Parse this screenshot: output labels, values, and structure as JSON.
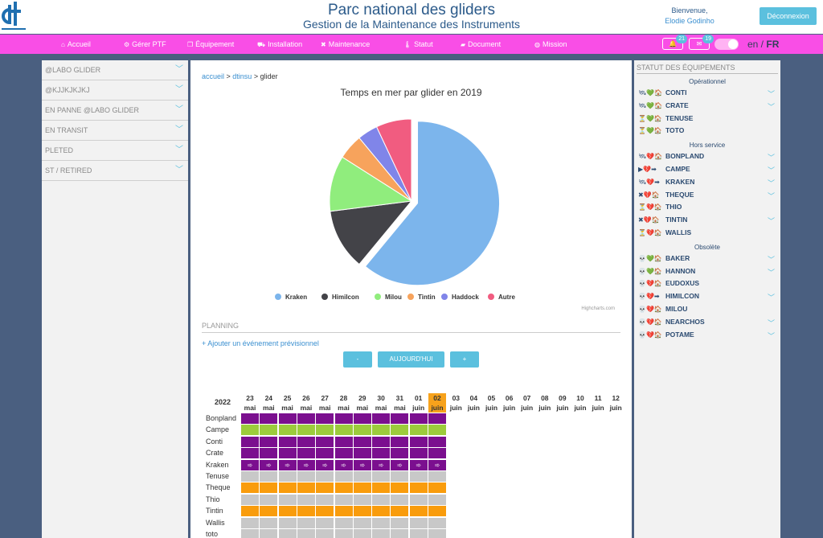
{
  "header": {
    "title": "Parc national des gliders",
    "subtitle": "Gestion de la Maintenance des Instruments",
    "welcome": "Bienvenue,",
    "user": "Elodie Godinho",
    "logout": "Déconnexion"
  },
  "nav": {
    "items": [
      {
        "label": "Accueil",
        "icon": "home-icon"
      },
      {
        "label": "Gérer PTF",
        "icon": "gears-icon"
      },
      {
        "label": "Équipement",
        "icon": "box-icon"
      },
      {
        "label": "Installation",
        "icon": "truck-icon"
      },
      {
        "label": "Maintenance",
        "icon": "wrench-icon"
      },
      {
        "label": "Statut",
        "icon": "thermometer-icon"
      },
      {
        "label": "Document",
        "icon": "folder-icon"
      },
      {
        "label": "Mission",
        "icon": "globe-icon"
      }
    ],
    "notifications": [
      {
        "icon": "bell-icon",
        "count": "21"
      },
      {
        "icon": "mail-icon",
        "count": "19"
      }
    ],
    "lang_en": "en /",
    "lang_fr": "FR"
  },
  "left": {
    "items": [
      "@LABO GLIDER",
      "@KJJKJKJKJ",
      "EN PANNE @LABO GLIDER",
      "EN TRANSIT",
      "PLETED",
      "ST / RETIRED"
    ]
  },
  "breadcrumb": {
    "home": "accueil",
    "sep": " > ",
    "middle": "dtinsu",
    "current": "glider"
  },
  "chart_data": {
    "type": "pie",
    "title": "Temps en mer par glider en 2019",
    "slices": [
      {
        "name": "Kraken",
        "value": 61,
        "color": "#7cb5ec"
      },
      {
        "name": "Himilcon",
        "value": 12,
        "color": "#434348"
      },
      {
        "name": "Milou",
        "value": 11,
        "color": "#90ed7d"
      },
      {
        "name": "Tintin",
        "value": 5,
        "color": "#f7a35c"
      },
      {
        "name": "Haddock",
        "value": 4,
        "color": "#8085e9"
      },
      {
        "name": "Autre",
        "value": 7,
        "color": "#f15c80"
      }
    ],
    "sliced": "Kraken",
    "legend": "bottom",
    "credits": "Highcharts.com"
  },
  "planning": {
    "title": "PLANNING",
    "add_event": "Ajouter un événement prévisionnel",
    "btn_prev": "-",
    "btn_today": "AUJOURD'HUI",
    "btn_next": "+",
    "year": "2022",
    "days": [
      {
        "d": "23",
        "m": "mai"
      },
      {
        "d": "24",
        "m": "mai"
      },
      {
        "d": "25",
        "m": "mai"
      },
      {
        "d": "26",
        "m": "mai"
      },
      {
        "d": "27",
        "m": "mai"
      },
      {
        "d": "28",
        "m": "mai"
      },
      {
        "d": "29",
        "m": "mai"
      },
      {
        "d": "30",
        "m": "mai"
      },
      {
        "d": "31",
        "m": "mai"
      },
      {
        "d": "01",
        "m": "juin"
      },
      {
        "d": "02",
        "m": "juin"
      },
      {
        "d": "03",
        "m": "juin"
      },
      {
        "d": "04",
        "m": "juin"
      },
      {
        "d": "05",
        "m": "juin"
      },
      {
        "d": "06",
        "m": "juin"
      },
      {
        "d": "07",
        "m": "juin"
      },
      {
        "d": "08",
        "m": "juin"
      },
      {
        "d": "09",
        "m": "juin"
      },
      {
        "d": "10",
        "m": "juin"
      },
      {
        "d": "11",
        "m": "juin"
      },
      {
        "d": "12",
        "m": "juin"
      }
    ],
    "today": "02 juin",
    "rows": [
      {
        "name": "Bonpland",
        "color": "#7b0f8f",
        "arrow": false
      },
      {
        "name": "Campe",
        "color": "#9ccc3c",
        "arrow": false
      },
      {
        "name": "Conti",
        "color": "#7b0f8f",
        "arrow": false
      },
      {
        "name": "Crate",
        "color": "#7b0f8f",
        "arrow": false
      },
      {
        "name": "Kraken",
        "color": "#7b0f8f",
        "arrow": true
      },
      {
        "name": "Tenuse",
        "color": "#c8c8c8",
        "arrow": false
      },
      {
        "name": "Theque",
        "color": "#f99c0c",
        "arrow": false
      },
      {
        "name": "Thio",
        "color": "#c8c8c8",
        "arrow": false
      },
      {
        "name": "Tintin",
        "color": "#f99c0c",
        "arrow": false
      },
      {
        "name": "Wallis",
        "color": "#c8c8c8",
        "arrow": false
      },
      {
        "name": "toto",
        "color": "#c8c8c8",
        "arrow": false
      }
    ],
    "arrow_glyph": "➾"
  },
  "right": {
    "title": "STATUT DES ÉQUIPEMENTS",
    "groups": [
      {
        "label": "Opérationnel",
        "items": [
          {
            "name": "CONTI",
            "icons": "🛰💚🏠",
            "chev": true
          },
          {
            "name": "CRATE",
            "icons": "🛰💚🏠",
            "chev": true
          },
          {
            "name": "TENUSE",
            "icons": "⏳💚🏠",
            "chev": false
          },
          {
            "name": "TOTO",
            "icons": "⏳💚🏠",
            "chev": false
          }
        ]
      },
      {
        "label": "Hors service",
        "items": [
          {
            "name": "BONPLAND",
            "icons": "🛰💔🏠",
            "chev": true
          },
          {
            "name": "CAMPE",
            "icons": "▶💔➡",
            "chev": true
          },
          {
            "name": "KRAKEN",
            "icons": "🛰💔➡",
            "chev": true
          },
          {
            "name": "THEQUE",
            "icons": "✖💔🏠",
            "chev": true
          },
          {
            "name": "THIO",
            "icons": "⏳💔🏠",
            "chev": false
          },
          {
            "name": "TINTIN",
            "icons": "✖💔🏠",
            "chev": true
          },
          {
            "name": "WALLIS",
            "icons": "⏳💔🏠",
            "chev": false
          }
        ]
      },
      {
        "label": "Obsolète",
        "items": [
          {
            "name": "BAKER",
            "icons": "💀💚🏠",
            "chev": true
          },
          {
            "name": "HANNON",
            "icons": "💀💚🏠",
            "chev": true
          },
          {
            "name": "EUDOXUS",
            "icons": "💀💔🏠",
            "chev": false
          },
          {
            "name": "HIMILCON",
            "icons": "💀💔➡",
            "chev": true
          },
          {
            "name": "MILOU",
            "icons": "💀💔🏠",
            "chev": false
          },
          {
            "name": "NEARCHOS",
            "icons": "💀💔🏠",
            "chev": true
          },
          {
            "name": "POTAME",
            "icons": "💀💔🏠",
            "chev": true
          }
        ]
      }
    ]
  }
}
